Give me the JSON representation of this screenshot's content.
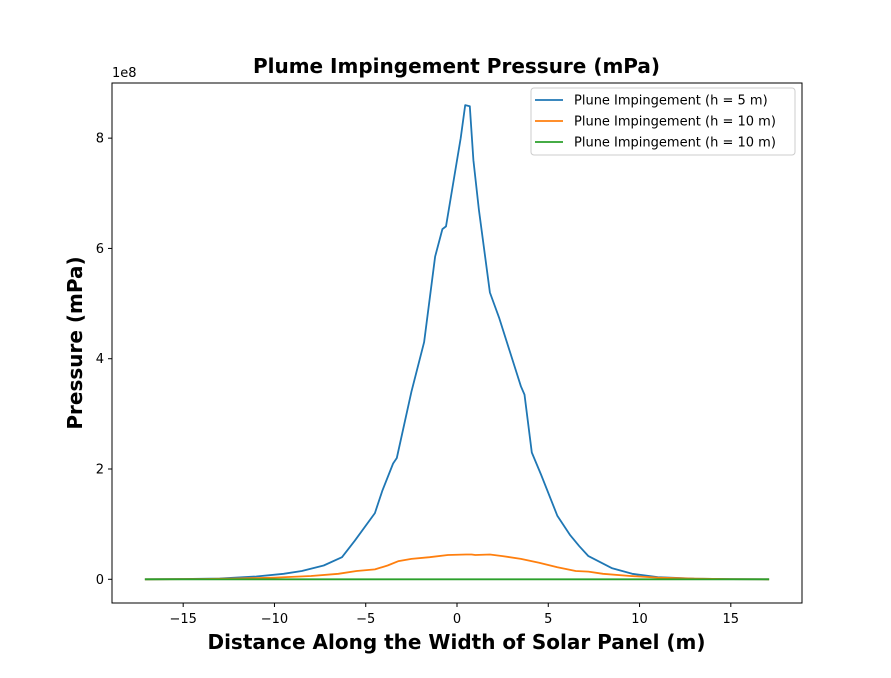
{
  "chart_data": {
    "type": "line",
    "title": "Plume Impingement Pressure (mPa)",
    "xlabel": "Distance Along the Width of Solar Panel (m)",
    "ylabel": "Pressure (mPa)",
    "y_offset_label": "1e8",
    "xlim": [
      -18.9,
      18.9
    ],
    "ylim": [
      -0.43,
      9.0
    ],
    "x_ticks": [
      -15,
      -10,
      -5,
      0,
      5,
      10,
      15
    ],
    "x_tick_labels": [
      "−15",
      "−10",
      "−5",
      "0",
      "5",
      "10",
      "15"
    ],
    "y_ticks": [
      0,
      2,
      4,
      6,
      8
    ],
    "y_tick_labels": [
      "0",
      "2",
      "4",
      "6",
      "8"
    ],
    "grid": false,
    "legend_position": "top-right",
    "series": [
      {
        "name": "Plune Impingement (h = 5 m)",
        "color": "#1f77b4",
        "points": [
          [
            -17.1,
            0.0
          ],
          [
            -15,
            0.005
          ],
          [
            -13,
            0.015
          ],
          [
            -11,
            0.05
          ],
          [
            -9.5,
            0.1
          ],
          [
            -8.5,
            0.15
          ],
          [
            -7.3,
            0.25
          ],
          [
            -6.3,
            0.4
          ],
          [
            -5.6,
            0.7
          ],
          [
            -4.5,
            1.2
          ],
          [
            -4.1,
            1.6
          ],
          [
            -3.5,
            2.1
          ],
          [
            -3.3,
            2.2
          ],
          [
            -2.5,
            3.4
          ],
          [
            -1.8,
            4.3
          ],
          [
            -1.2,
            5.85
          ],
          [
            -0.8,
            6.35
          ],
          [
            -0.6,
            6.4
          ],
          [
            0.2,
            8.0
          ],
          [
            0.45,
            8.6
          ],
          [
            0.7,
            8.58
          ],
          [
            0.9,
            7.6
          ],
          [
            1.2,
            6.7
          ],
          [
            1.8,
            5.2
          ],
          [
            2.3,
            4.75
          ],
          [
            3.5,
            3.5
          ],
          [
            3.7,
            3.35
          ],
          [
            4.1,
            2.3
          ],
          [
            4.6,
            1.9
          ],
          [
            5.5,
            1.15
          ],
          [
            6.2,
            0.8
          ],
          [
            6.7,
            0.6
          ],
          [
            7.2,
            0.42
          ],
          [
            8.5,
            0.2
          ],
          [
            9.6,
            0.1
          ],
          [
            11,
            0.04
          ],
          [
            13,
            0.01
          ],
          [
            15,
            0.003
          ],
          [
            17.1,
            0.0
          ]
        ]
      },
      {
        "name": "Plune Impingement (h = 10 m)",
        "color": "#ff7f0e",
        "points": [
          [
            -17.1,
            0.0
          ],
          [
            -14,
            0.005
          ],
          [
            -12,
            0.015
          ],
          [
            -10,
            0.03
          ],
          [
            -8,
            0.06
          ],
          [
            -6.5,
            0.1
          ],
          [
            -5.5,
            0.15
          ],
          [
            -4.5,
            0.18
          ],
          [
            -3.8,
            0.25
          ],
          [
            -3.2,
            0.33
          ],
          [
            -2.5,
            0.37
          ],
          [
            -1.5,
            0.4
          ],
          [
            -0.5,
            0.44
          ],
          [
            0.5,
            0.45
          ],
          [
            0.8,
            0.45
          ],
          [
            1.0,
            0.44
          ],
          [
            1.8,
            0.45
          ],
          [
            2.5,
            0.42
          ],
          [
            3.5,
            0.37
          ],
          [
            4.5,
            0.3
          ],
          [
            5.5,
            0.22
          ],
          [
            6.5,
            0.15
          ],
          [
            7.2,
            0.14
          ],
          [
            8,
            0.1
          ],
          [
            9.5,
            0.06
          ],
          [
            11,
            0.03
          ],
          [
            13,
            0.01
          ],
          [
            15,
            0.003
          ],
          [
            17.1,
            0.0
          ]
        ]
      },
      {
        "name": "Plune Impingement (h = 10 m)",
        "color": "#2ca02c",
        "points": [
          [
            -17.1,
            0.0
          ],
          [
            0,
            0.0
          ],
          [
            17.1,
            0.0
          ]
        ]
      }
    ]
  }
}
